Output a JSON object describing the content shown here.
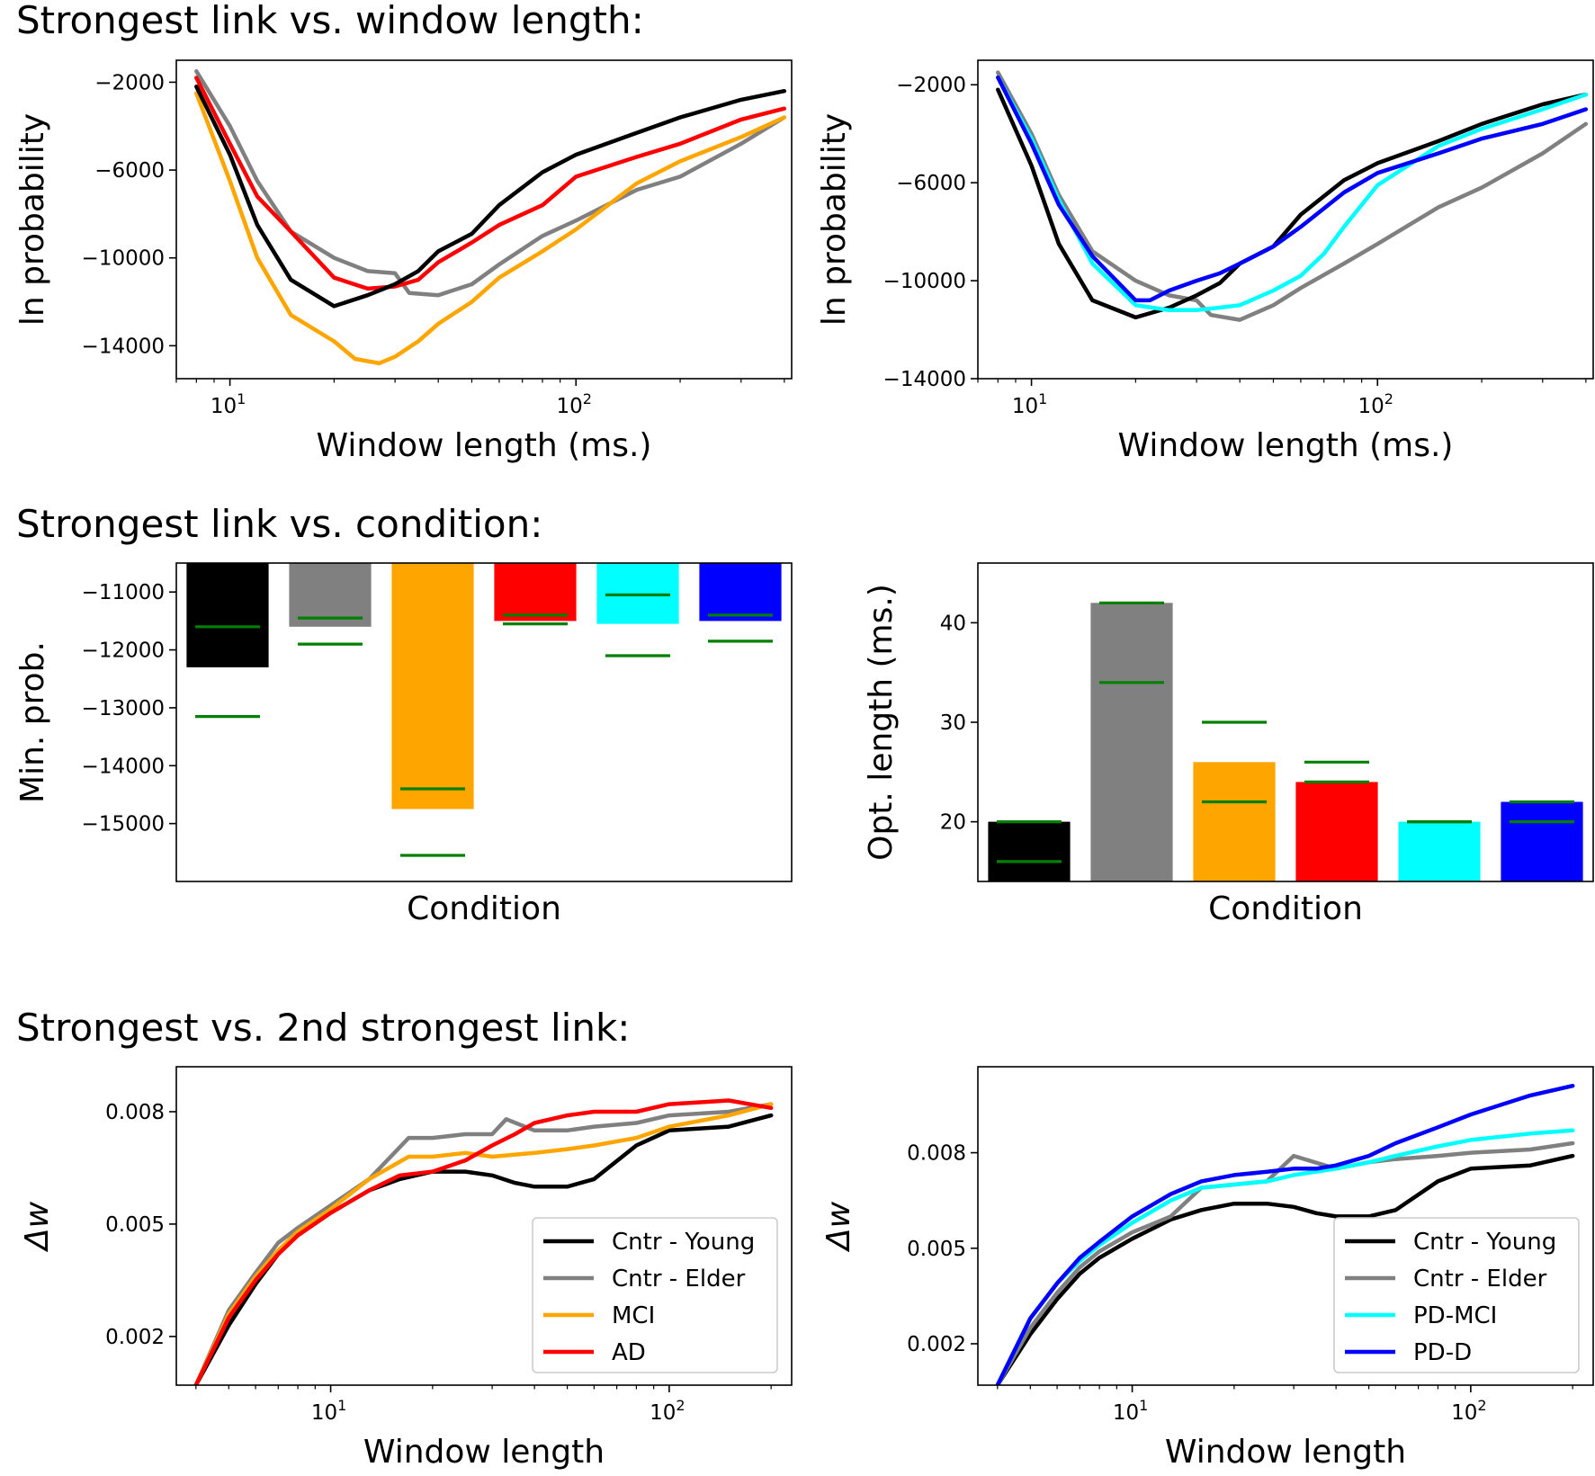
{
  "sections": {
    "window": "Strongest link vs. window length:",
    "condition": "Strongest link vs. condition:",
    "delta": "Strongest vs. 2nd strongest link:"
  },
  "colors": {
    "young": "#000000",
    "elder": "#808080",
    "mci": "#ffa500",
    "ad": "#ff0000",
    "pdmci": "#00ffff",
    "pdd": "#0000ff",
    "errbar": "#008000"
  },
  "chart_data": [
    {
      "id": "p1",
      "type": "line",
      "xscale": "log",
      "xlabel": "Window length (ms.)",
      "ylabel": "ln probability",
      "xlim": [
        7,
        420
      ],
      "ylim": [
        -15500,
        -1000
      ],
      "xticks": [
        {
          "v": 10,
          "b": "10",
          "e": "1"
        },
        {
          "v": 100,
          "b": "10",
          "e": "2"
        }
      ],
      "yticks": [
        {
          "v": -2000,
          "label": "−2000"
        },
        {
          "v": -6000,
          "label": "−6000"
        },
        {
          "v": -10000,
          "label": "−10000"
        },
        {
          "v": -14000,
          "label": "−14000"
        }
      ],
      "series": [
        {
          "name": "Cntr - Elder",
          "color": "#808080",
          "x": [
            8,
            10,
            12,
            15,
            20,
            25,
            30,
            33,
            40,
            50,
            60,
            80,
            100,
            150,
            200,
            300,
            400
          ],
          "y": [
            -1500,
            -4000,
            -6500,
            -8800,
            -10000,
            -10600,
            -10700,
            -11600,
            -11700,
            -11200,
            -10300,
            -9000,
            -8300,
            -6900,
            -6300,
            -4800,
            -3600
          ]
        },
        {
          "name": "MCI",
          "color": "#ffa500",
          "x": [
            8,
            10,
            12,
            15,
            20,
            23,
            27,
            30,
            35,
            40,
            50,
            60,
            80,
            100,
            150,
            200,
            300,
            400
          ],
          "y": [
            -2500,
            -6500,
            -10000,
            -12600,
            -13800,
            -14600,
            -14800,
            -14500,
            -13800,
            -13000,
            -12000,
            -10900,
            -9700,
            -8700,
            -6600,
            -5600,
            -4500,
            -3600
          ]
        },
        {
          "name": "AD",
          "color": "#ff0000",
          "x": [
            8,
            10,
            12,
            15,
            20,
            25,
            30,
            35,
            40,
            50,
            60,
            80,
            100,
            150,
            200,
            300,
            400
          ],
          "y": [
            -1800,
            -4800,
            -7200,
            -8800,
            -10900,
            -11400,
            -11300,
            -11000,
            -10200,
            -9300,
            -8500,
            -7600,
            -6300,
            -5400,
            -4800,
            -3700,
            -3200
          ]
        },
        {
          "name": "Cntr - Young",
          "color": "#000000",
          "x": [
            8,
            10,
            12,
            15,
            20,
            25,
            30,
            35,
            40,
            50,
            60,
            80,
            100,
            150,
            200,
            300,
            400
          ],
          "y": [
            -2200,
            -5300,
            -8500,
            -11000,
            -12200,
            -11700,
            -11200,
            -10600,
            -9700,
            -8900,
            -7600,
            -6100,
            -5300,
            -4300,
            -3600,
            -2800,
            -2400
          ]
        }
      ]
    },
    {
      "id": "p2",
      "type": "line",
      "xscale": "log",
      "xlabel": "Window length (ms.)",
      "ylabel": "ln probability",
      "xlim": [
        7,
        420
      ],
      "ylim": [
        -14000,
        -1000
      ],
      "xticks": [
        {
          "v": 10,
          "b": "10",
          "e": "1"
        },
        {
          "v": 100,
          "b": "10",
          "e": "2"
        }
      ],
      "yticks": [
        {
          "v": -2000,
          "label": "−2000"
        },
        {
          "v": -6000,
          "label": "−6000"
        },
        {
          "v": -10000,
          "label": "−10000"
        },
        {
          "v": -14000,
          "label": "−14000"
        }
      ],
      "series": [
        {
          "name": "Cntr - Elder",
          "color": "#808080",
          "x": [
            8,
            10,
            12,
            15,
            20,
            25,
            30,
            33,
            40,
            50,
            60,
            80,
            100,
            150,
            200,
            300,
            400
          ],
          "y": [
            -1500,
            -4000,
            -6500,
            -8800,
            -10000,
            -10600,
            -10800,
            -11400,
            -11600,
            -11000,
            -10300,
            -9300,
            -8500,
            -7000,
            -6200,
            -4800,
            -3600
          ]
        },
        {
          "name": "Cntr - Young",
          "color": "#000000",
          "x": [
            8,
            10,
            12,
            15,
            20,
            25,
            30,
            35,
            40,
            50,
            60,
            80,
            100,
            150,
            200,
            300,
            400
          ],
          "y": [
            -2200,
            -5300,
            -8500,
            -10800,
            -11500,
            -11100,
            -10600,
            -10100,
            -9300,
            -8600,
            -7300,
            -5900,
            -5200,
            -4300,
            -3600,
            -2800,
            -2400
          ]
        },
        {
          "name": "PD-MCI",
          "color": "#00ffff",
          "x": [
            8,
            10,
            12,
            15,
            20,
            25,
            30,
            35,
            40,
            50,
            60,
            70,
            80,
            100,
            150,
            200,
            300,
            400
          ],
          "y": [
            -1700,
            -4200,
            -6700,
            -9300,
            -11000,
            -11200,
            -11200,
            -11100,
            -11000,
            -10400,
            -9800,
            -8900,
            -7800,
            -6100,
            -4500,
            -3800,
            -3000,
            -2400
          ]
        },
        {
          "name": "PD-D",
          "color": "#0000ff",
          "x": [
            8,
            10,
            12,
            15,
            20,
            22,
            25,
            30,
            35,
            40,
            50,
            60,
            80,
            100,
            150,
            200,
            300,
            400
          ],
          "y": [
            -1700,
            -4400,
            -6900,
            -9000,
            -10800,
            -10800,
            -10400,
            -10000,
            -9700,
            -9300,
            -8600,
            -7800,
            -6400,
            -5600,
            -4800,
            -4200,
            -3600,
            -3000
          ]
        }
      ]
    },
    {
      "id": "p3",
      "type": "bar",
      "xlabel": "Condition",
      "ylabel": "Min. prob.",
      "ylim": [
        -16000,
        -10500
      ],
      "yticks": [
        {
          "v": -11000,
          "label": "−11000"
        },
        {
          "v": -12000,
          "label": "−12000"
        },
        {
          "v": -13000,
          "label": "−13000"
        },
        {
          "v": -14000,
          "label": "−14000"
        },
        {
          "v": -15000,
          "label": "−15000"
        }
      ],
      "categories": [
        "Cntr - Young",
        "Cntr - Elder",
        "MCI",
        "AD",
        "PD-MCI",
        "PD-D"
      ],
      "values": [
        -12300,
        -11600,
        -14750,
        -11500,
        -11550,
        -11500
      ],
      "colors": [
        "#000000",
        "#808080",
        "#ffa500",
        "#ff0000",
        "#00ffff",
        "#0000ff"
      ],
      "err_low": [
        -13150,
        -11900,
        -15550,
        -11550,
        -12100,
        -11850
      ],
      "err_high": [
        -11600,
        -11450,
        -14400,
        -11400,
        -11050,
        -11400
      ]
    },
    {
      "id": "p4",
      "type": "bar",
      "xlabel": "Condition",
      "ylabel": "Opt. length (ms.)",
      "ylim": [
        14,
        46
      ],
      "yticks": [
        {
          "v": 20,
          "label": "20"
        },
        {
          "v": 30,
          "label": "30"
        },
        {
          "v": 40,
          "label": "40"
        }
      ],
      "categories": [
        "Cntr - Young",
        "Cntr - Elder",
        "MCI",
        "AD",
        "PD-MCI",
        "PD-D"
      ],
      "values": [
        20,
        42,
        26,
        24,
        20,
        22
      ],
      "colors": [
        "#000000",
        "#808080",
        "#ffa500",
        "#ff0000",
        "#00ffff",
        "#0000ff"
      ],
      "err_low": [
        16,
        34,
        22,
        24,
        20,
        20
      ],
      "err_high": [
        20,
        42,
        30,
        26,
        20,
        22
      ]
    },
    {
      "id": "p5",
      "type": "line",
      "xscale": "log",
      "xlabel": "Window length",
      "ylabel": "Δw",
      "xlim": [
        3.5,
        230
      ],
      "ylim": [
        0.0007,
        0.0092
      ],
      "xticks": [
        {
          "v": 10,
          "b": "10",
          "e": "1"
        },
        {
          "v": 100,
          "b": "10",
          "e": "2"
        }
      ],
      "yticks": [
        {
          "v": 0.002,
          "label": "0.002"
        },
        {
          "v": 0.005,
          "label": "0.005"
        },
        {
          "v": 0.008,
          "label": "0.008"
        }
      ],
      "legend": "lower-right",
      "series": [
        {
          "name": "Cntr - Young",
          "color": "#000000",
          "x": [
            4,
            5,
            6,
            7,
            8,
            10,
            13,
            16,
            20,
            25,
            30,
            35,
            40,
            50,
            60,
            80,
            100,
            150,
            200
          ],
          "y": [
            0.0007,
            0.0023,
            0.0034,
            0.0042,
            0.0047,
            0.0053,
            0.0059,
            0.0062,
            0.0064,
            0.0064,
            0.0063,
            0.0061,
            0.006,
            0.006,
            0.0062,
            0.0071,
            0.0075,
            0.0076,
            0.0079
          ]
        },
        {
          "name": "Cntr - Elder",
          "color": "#808080",
          "x": [
            4,
            5,
            6,
            7,
            8,
            10,
            13,
            17,
            20,
            25,
            30,
            33,
            40,
            50,
            60,
            80,
            100,
            150,
            200
          ],
          "y": [
            0.0007,
            0.0027,
            0.0037,
            0.0045,
            0.0049,
            0.0055,
            0.0062,
            0.0073,
            0.0073,
            0.0074,
            0.0074,
            0.0078,
            0.0075,
            0.0075,
            0.0076,
            0.0077,
            0.0079,
            0.008,
            0.0082
          ]
        },
        {
          "name": "MCI",
          "color": "#ffa500",
          "x": [
            4,
            5,
            6,
            7,
            8,
            10,
            13,
            17,
            20,
            25,
            30,
            40,
            50,
            60,
            80,
            100,
            150,
            200
          ],
          "y": [
            0.0007,
            0.0026,
            0.0036,
            0.0043,
            0.0048,
            0.0054,
            0.0062,
            0.0068,
            0.0068,
            0.0069,
            0.0068,
            0.0069,
            0.007,
            0.0071,
            0.0073,
            0.0076,
            0.0079,
            0.0082
          ]
        },
        {
          "name": "AD",
          "color": "#ff0000",
          "x": [
            4,
            5,
            6,
            7,
            8,
            10,
            13,
            16,
            20,
            25,
            30,
            35,
            40,
            50,
            60,
            80,
            100,
            150,
            200
          ],
          "y": [
            0.0007,
            0.0025,
            0.0035,
            0.0042,
            0.0047,
            0.0053,
            0.0059,
            0.0063,
            0.0064,
            0.0067,
            0.0071,
            0.0074,
            0.0077,
            0.0079,
            0.008,
            0.008,
            0.0082,
            0.0083,
            0.0081
          ]
        }
      ]
    },
    {
      "id": "p6",
      "type": "line",
      "xscale": "log",
      "xlabel": "Window length",
      "ylabel": "Δw",
      "xlim": [
        3.5,
        230
      ],
      "ylim": [
        0.0007,
        0.0107
      ],
      "xticks": [
        {
          "v": 10,
          "b": "10",
          "e": "1"
        },
        {
          "v": 100,
          "b": "10",
          "e": "2"
        }
      ],
      "yticks": [
        {
          "v": 0.002,
          "label": "0.002"
        },
        {
          "v": 0.005,
          "label": "0.005"
        },
        {
          "v": 0.008,
          "label": "0.008"
        }
      ],
      "legend": "lower-right",
      "series": [
        {
          "name": "Cntr - Young",
          "color": "#000000",
          "x": [
            4,
            5,
            6,
            7,
            8,
            10,
            13,
            16,
            20,
            25,
            30,
            35,
            40,
            50,
            60,
            80,
            100,
            150,
            200
          ],
          "y": [
            0.0007,
            0.0023,
            0.0034,
            0.0042,
            0.0047,
            0.0053,
            0.0059,
            0.0062,
            0.0064,
            0.0064,
            0.0063,
            0.0061,
            0.006,
            0.006,
            0.0062,
            0.0071,
            0.0075,
            0.0076,
            0.0079
          ]
        },
        {
          "name": "Cntr - Elder",
          "color": "#808080",
          "x": [
            4,
            5,
            6,
            7,
            8,
            10,
            13,
            16,
            20,
            25,
            30,
            40,
            50,
            60,
            80,
            100,
            150,
            200
          ],
          "y": [
            0.0007,
            0.0025,
            0.0036,
            0.0044,
            0.0049,
            0.0055,
            0.006,
            0.0069,
            0.007,
            0.0071,
            0.0079,
            0.0075,
            0.0077,
            0.0078,
            0.0079,
            0.008,
            0.0081,
            0.0083
          ]
        },
        {
          "name": "PD-MCI",
          "color": "#00ffff",
          "x": [
            4,
            5,
            6,
            7,
            8,
            10,
            13,
            16,
            20,
            25,
            30,
            40,
            50,
            60,
            80,
            100,
            150,
            200
          ],
          "y": [
            0.0007,
            0.0028,
            0.0039,
            0.0046,
            0.0051,
            0.0058,
            0.0065,
            0.0069,
            0.007,
            0.0071,
            0.0073,
            0.0075,
            0.0077,
            0.0079,
            0.0082,
            0.0084,
            0.0086,
            0.0087
          ]
        },
        {
          "name": "PD-D",
          "color": "#0000ff",
          "x": [
            4,
            5,
            6,
            7,
            8,
            10,
            13,
            16,
            20,
            25,
            30,
            35,
            40,
            50,
            60,
            80,
            100,
            150,
            200
          ],
          "y": [
            0.0007,
            0.0028,
            0.0039,
            0.0047,
            0.0052,
            0.006,
            0.0067,
            0.0071,
            0.0073,
            0.0074,
            0.0075,
            0.0075,
            0.0076,
            0.0079,
            0.0083,
            0.0088,
            0.0092,
            0.0098,
            0.0101
          ]
        }
      ]
    }
  ]
}
